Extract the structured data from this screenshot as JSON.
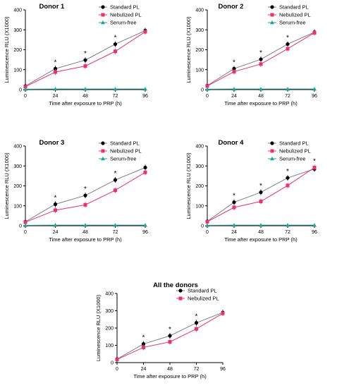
{
  "colors": {
    "standard": "#000000",
    "standard_line": "#7f7f7f",
    "nebulized": "#e8336d",
    "serum_free": "#2aa198"
  },
  "chart_data": [
    {
      "type": "line",
      "title": "Donor 1",
      "xlabel": "Time after exposure to PRP (h)",
      "ylabel": "Luminescence RLU (X1000)",
      "x": [
        0,
        24,
        48,
        72,
        96
      ],
      "xticks": [
        "0",
        "24",
        "48",
        "72",
        "96"
      ],
      "yticks": [
        "0",
        "100",
        "200",
        "300",
        "400"
      ],
      "ylim": [
        0,
        400
      ],
      "significance": [
        "",
        "*",
        "*",
        "*",
        ""
      ],
      "series": [
        {
          "name": "Standard PL",
          "values": [
            18,
            105,
            148,
            228,
            296
          ]
        },
        {
          "name": "Nebulized PL",
          "values": [
            15,
            88,
            118,
            192,
            290
          ]
        },
        {
          "name": "Serum-free",
          "values": [
            2,
            3,
            3,
            3,
            3
          ]
        }
      ],
      "legend": "top-right"
    },
    {
      "type": "line",
      "title": "Donor 2",
      "xlabel": "Time after exposure to PRP (h)",
      "ylabel": "Luminescence RLU (X1000)",
      "x": [
        0,
        24,
        48,
        72,
        96
      ],
      "xticks": [
        "0",
        "24",
        "48",
        "72",
        "96"
      ],
      "yticks": [
        "0",
        "100",
        "200",
        "300",
        "400"
      ],
      "ylim": [
        0,
        400
      ],
      "significance": [
        "",
        "*",
        "*",
        "*",
        ""
      ],
      "series": [
        {
          "name": "Standard PL",
          "values": [
            20,
            105,
            152,
            228,
            288
          ]
        },
        {
          "name": "Nebulized PL",
          "values": [
            18,
            90,
            128,
            205,
            285
          ]
        },
        {
          "name": "Serum-free",
          "values": [
            2,
            3,
            3,
            3,
            3
          ]
        }
      ],
      "legend": "top-right"
    },
    {
      "type": "line",
      "title": "Donor 3",
      "xlabel": "Time after exposure to PRP (h)",
      "ylabel": "Luminescence RLU (X1000)",
      "x": [
        0,
        24,
        48,
        72,
        96
      ],
      "xticks": [
        "0",
        "24",
        "48",
        "72",
        "96"
      ],
      "yticks": [
        "0",
        "100",
        "200",
        "300",
        "400"
      ],
      "ylim": [
        0,
        400
      ],
      "significance": [
        "",
        "*",
        "*",
        "*",
        ""
      ],
      "series": [
        {
          "name": "Standard PL",
          "values": [
            20,
            108,
            152,
            230,
            292
          ]
        },
        {
          "name": "Nebulized PL",
          "values": [
            18,
            78,
            105,
            178,
            268
          ]
        },
        {
          "name": "Serum-free",
          "values": [
            2,
            3,
            3,
            3,
            3
          ]
        }
      ],
      "legend": "top-right"
    },
    {
      "type": "line",
      "title": "Donor 4",
      "xlabel": "Time after exposure to PRP (h)",
      "ylabel": "Luminescence RLU (X1000)",
      "x": [
        0,
        24,
        48,
        72,
        96
      ],
      "xticks": [
        "0",
        "24",
        "48",
        "72",
        "96"
      ],
      "yticks": [
        "0",
        "100",
        "200",
        "300",
        "400"
      ],
      "ylim": [
        0,
        400
      ],
      "significance": [
        "",
        "*",
        "*",
        "*",
        "*"
      ],
      "series": [
        {
          "name": "Standard PL",
          "values": [
            22,
            118,
            168,
            240,
            285
          ]
        },
        {
          "name": "Nebulized PL",
          "values": [
            20,
            92,
            122,
            202,
            292
          ]
        },
        {
          "name": "Serum-free",
          "values": [
            2,
            3,
            3,
            3,
            3
          ]
        }
      ],
      "legend": "top-right"
    },
    {
      "type": "line",
      "title": "All the donors",
      "xlabel": "Time after exposure to PRP (h)",
      "ylabel": "Luminescence RLU (X1000)",
      "x": [
        0,
        24,
        48,
        72,
        96
      ],
      "xticks": [
        "0",
        "24",
        "48",
        "72",
        "96"
      ],
      "yticks": [
        "0",
        "100",
        "200",
        "300",
        "400"
      ],
      "ylim": [
        0,
        400
      ],
      "significance": [
        "",
        "*",
        "*",
        "*",
        ""
      ],
      "series": [
        {
          "name": "Standard PL",
          "values": [
            20,
            108,
            155,
            230,
            290
          ]
        },
        {
          "name": "Nebulized PL",
          "values": [
            18,
            88,
            120,
            195,
            285
          ]
        }
      ],
      "legend": "top-right"
    }
  ]
}
